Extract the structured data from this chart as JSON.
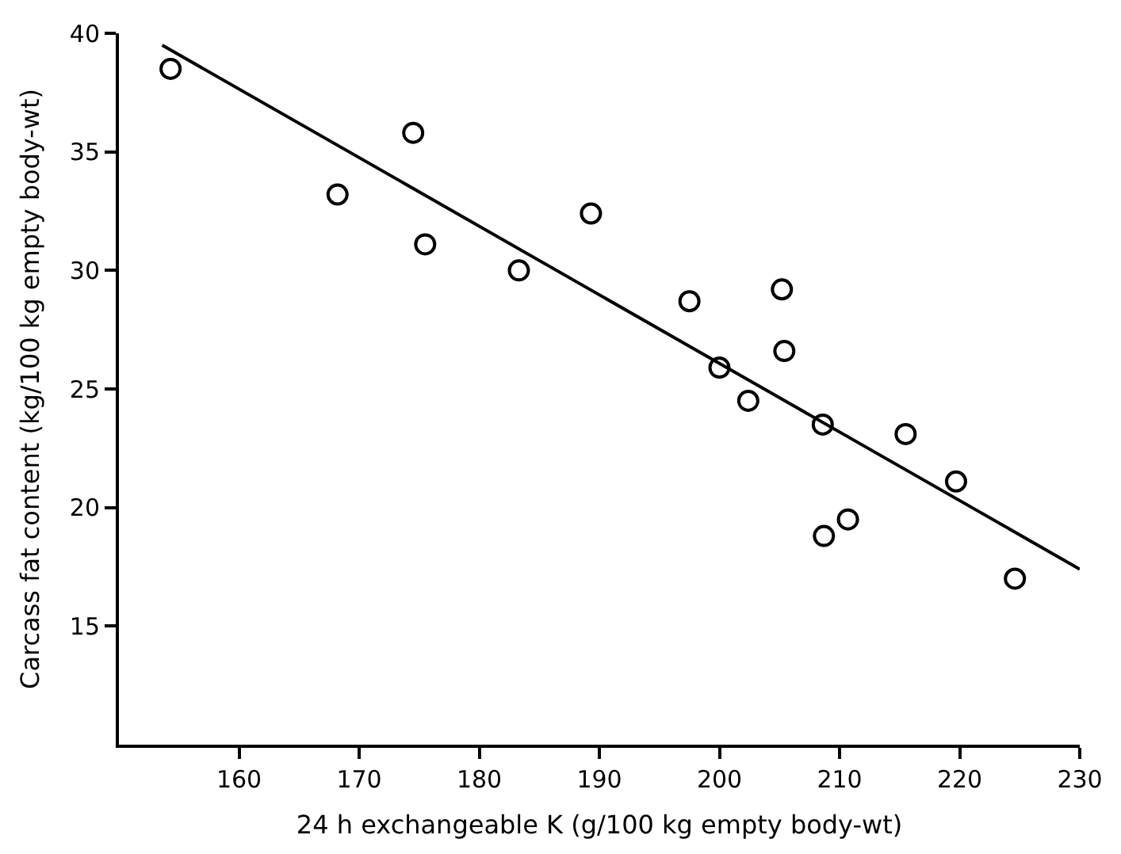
{
  "chart_data": {
    "type": "scatter",
    "xlabel": "24 h exchangeable K (g/100 kg empty body-wt)",
    "ylabel": "Carcass fat content (kg/100 kg empty body-wt)",
    "xlim": [
      150,
      230
    ],
    "ylim": [
      10,
      40
    ],
    "xticks": [
      160,
      170,
      180,
      190,
      200,
      210,
      220,
      230
    ],
    "yticks": [
      15,
      20,
      25,
      30,
      35,
      40
    ],
    "marker": "circle",
    "series": [
      {
        "color": "#000000",
        "x": [
          154.3,
          168.2,
          174.5,
          175.5,
          183.3,
          189.3,
          197.5,
          205.2,
          205.4,
          200.0,
          202.4,
          208.6,
          215.5,
          219.7,
          208.7,
          210.7,
          224.6
        ],
        "values": [
          38.5,
          33.2,
          35.8,
          31.1,
          30.0,
          32.4,
          28.7,
          29.2,
          26.6,
          25.9,
          24.5,
          23.5,
          23.1,
          21.1,
          18.8,
          19.5,
          17.0
        ]
      },
      {
        "type": "line",
        "color": "#000000",
        "marker": "none",
        "line_style": "solid",
        "x": [
          153.6,
          230
        ],
        "values": [
          39.5,
          17.4
        ]
      }
    ]
  }
}
